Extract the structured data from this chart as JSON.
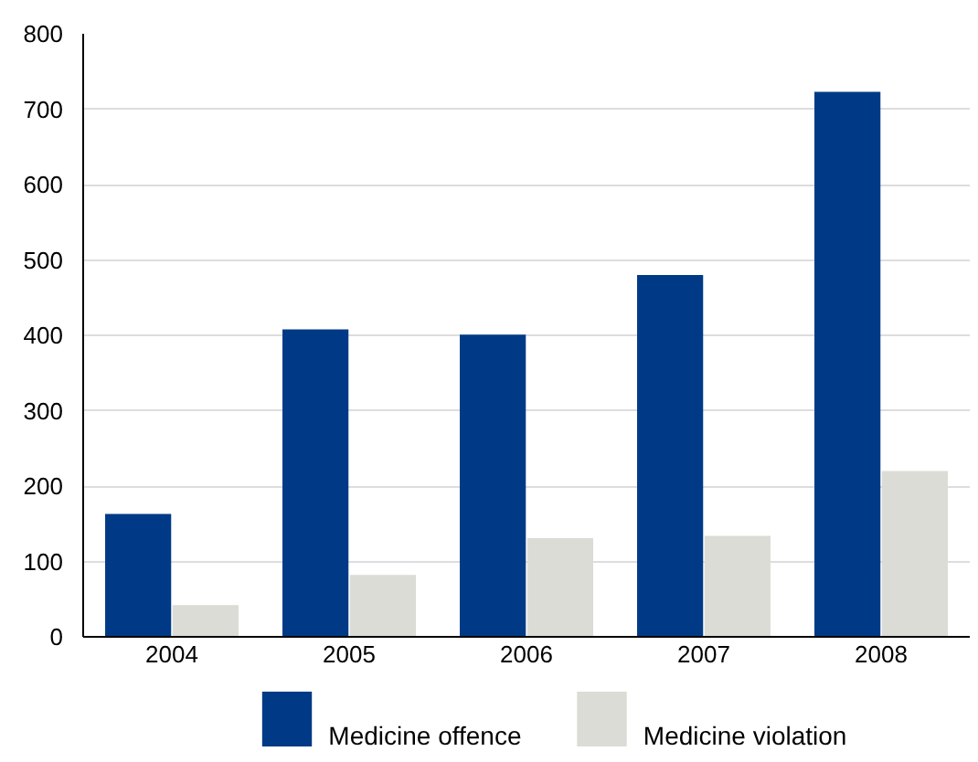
{
  "chart_data": {
    "type": "bar",
    "categories": [
      "2004",
      "2005",
      "2006",
      "2007",
      "2008"
    ],
    "series": [
      {
        "name": "Medicine offence",
        "color": "#003a87",
        "values": [
          163,
          408,
          401,
          480,
          723
        ]
      },
      {
        "name": "Medicine violation",
        "color": "#dcdcd6",
        "values": [
          42,
          82,
          131,
          134,
          220
        ]
      }
    ],
    "ylim": [
      0,
      800
    ],
    "yticks": [
      0,
      100,
      200,
      300,
      400,
      500,
      600,
      700,
      800
    ],
    "grid": "y",
    "legend": "bottom"
  }
}
